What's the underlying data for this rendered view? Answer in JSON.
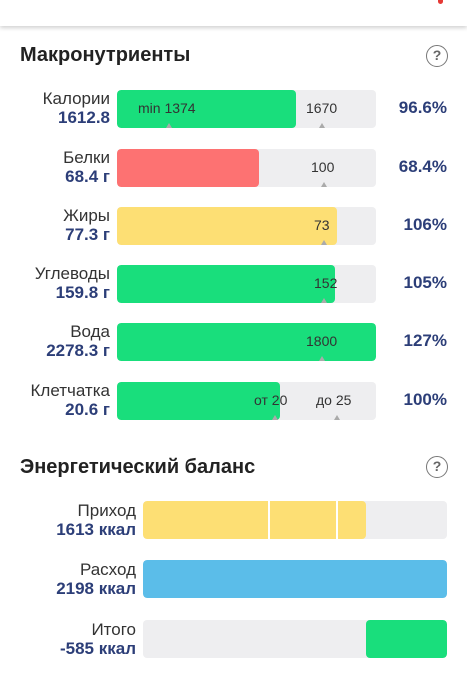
{
  "colors": {
    "green": "#19de7c",
    "red": "#fd7272",
    "yellow": "#fddf74",
    "blue": "#5bbde9",
    "track": "#eeeef0",
    "value_text": "#2c3e78"
  },
  "macros": {
    "title": "Макронутриенты",
    "help_icon": "question-mark-icon",
    "rows": [
      {
        "label": "Калории",
        "value": "1612.8",
        "percent": "96.6%",
        "fill_fraction": 0.69,
        "color": "#19de7c",
        "marks": [
          {
            "text": "min 1374",
            "at": 0.08,
            "tick": 0.2
          },
          {
            "text": "1670",
            "at": 0.73,
            "tick": 0.79
          }
        ]
      },
      {
        "label": "Белки",
        "value": "68.4 г",
        "percent": "68.4%",
        "fill_fraction": 0.55,
        "color": "#fd7272",
        "marks": [
          {
            "text": "100",
            "at": 0.75,
            "tick": 0.8
          }
        ]
      },
      {
        "label": "Жиры",
        "value": "77.3 г",
        "percent": "106%",
        "fill_fraction": 0.85,
        "color": "#fddf74",
        "marks": [
          {
            "text": "73",
            "at": 0.76,
            "tick": 0.8
          }
        ]
      },
      {
        "label": "Углеводы",
        "value": "159.8 г",
        "percent": "105%",
        "fill_fraction": 0.84,
        "color": "#19de7c",
        "marks": [
          {
            "text": "152",
            "at": 0.76,
            "tick": 0.8
          }
        ]
      },
      {
        "label": "Вода",
        "value": "2278.3 г",
        "percent": "127%",
        "fill_fraction": 1.0,
        "color": "#19de7c",
        "marks": [
          {
            "text": "1800",
            "at": 0.73,
            "tick": 0.79
          }
        ]
      },
      {
        "label": "Клетчатка",
        "value": "20.6 г",
        "percent": "100%",
        "fill_fraction": 0.63,
        "color": "#19de7c",
        "marks": [
          {
            "text": "от 20",
            "at": 0.53,
            "tick": 0.61
          },
          {
            "text": "до 25",
            "at": 0.77,
            "tick": 0.85
          }
        ]
      }
    ]
  },
  "energy": {
    "title": "Энергетический баланс",
    "help_icon": "question-mark-icon",
    "rows": [
      {
        "label": "Приход",
        "value": "1613 ккал",
        "start_fraction": 0.0,
        "fill_fraction": 0.735,
        "color": "#fddf74",
        "dividers": [
          0.41,
          0.635
        ]
      },
      {
        "label": "Расход",
        "value": "2198 ккал",
        "start_fraction": 0.0,
        "fill_fraction": 1.0,
        "color": "#5bbde9",
        "dividers": []
      },
      {
        "label": "Итого",
        "value": "-585 ккал",
        "start_fraction": 0.735,
        "fill_fraction": 0.265,
        "color": "#19de7c",
        "dividers": []
      }
    ]
  }
}
